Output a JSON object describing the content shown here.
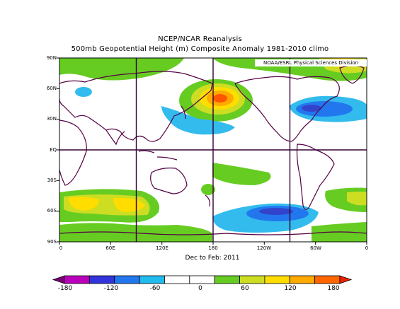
{
  "title_line1": "NCEP/NCAR Reanalysis",
  "title_line2": "500mb Geopotential Height (m) Composite Anomaly 1981-2010 climo",
  "credit": "NOAA/ESRL Physical Sciences Division",
  "period": "Dec to Feb: 2011",
  "lat_labels": [
    "90N",
    "60N",
    "30N",
    "EQ",
    "30S",
    "60S",
    "90S"
  ],
  "lon_labels": [
    "0",
    "60E",
    "120E",
    "180",
    "120W",
    "60W",
    "0"
  ],
  "colorbar_labels": [
    "-180",
    "-120",
    "-60",
    "0",
    "60",
    "120",
    "180"
  ],
  "colorbar_colors": [
    "#770077",
    "#bb00bb",
    "#3333dd",
    "#2277ee",
    "#22bbee",
    "#ffffff",
    "#ffffff",
    "#66cc22",
    "#ccdd22",
    "#ffdd00",
    "#ffaa00",
    "#ff6600",
    "#ee2200"
  ],
  "colors": {
    "neg_light": "#33bbee",
    "neg_mid": "#2277ee",
    "neg_dark": "#3344cc",
    "pos_green": "#66cc22",
    "pos_yellowgreen": "#ccdd22",
    "pos_yellow": "#ffdd00",
    "pos_orange": "#ffaa00",
    "pos_red": "#ff5500",
    "coast": "#550044",
    "grid": "#330033"
  }
}
